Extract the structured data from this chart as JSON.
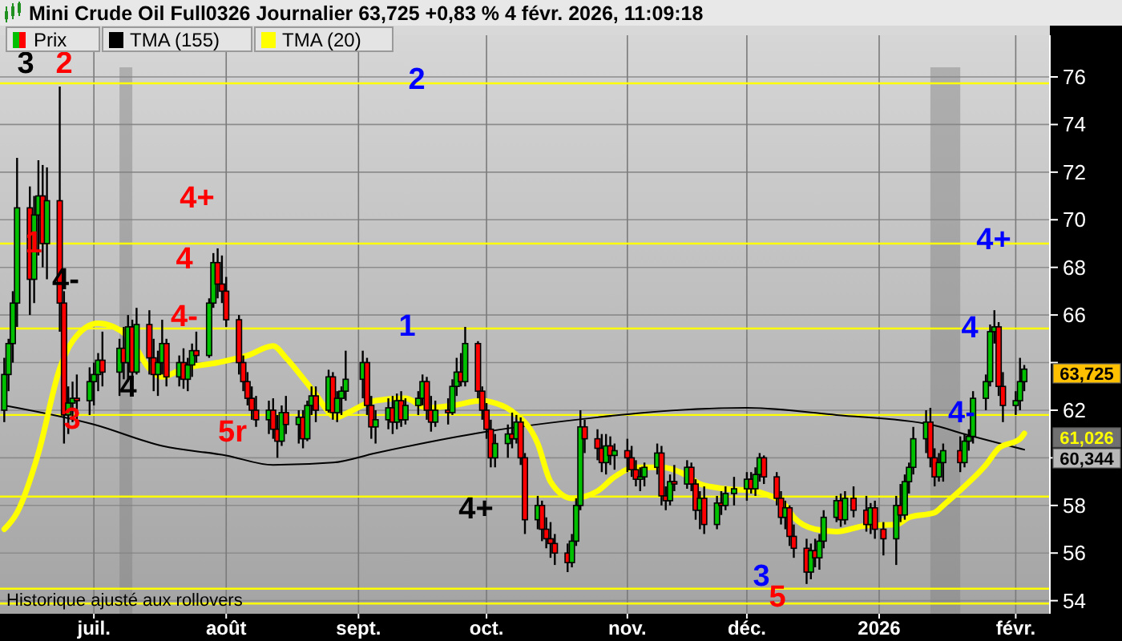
{
  "chart_data": {
    "type": "candlestick",
    "title": "Mini Crude Oil Full0326 Journalier 63,725 +0,83 % 4 févr. 2026, 11:09:18",
    "xlim": [
      "2025-06-09",
      "2026-02-10"
    ],
    "xticks": [
      {
        "value": "2025-07-01",
        "label": "juil."
      },
      {
        "value": "2025-08-01",
        "label": "août"
      },
      {
        "value": "2025-09-01",
        "label": "sept."
      },
      {
        "value": "2025-10-01",
        "label": "oct."
      },
      {
        "value": "2025-11-03",
        "label": "nov."
      },
      {
        "value": "2025-12-01",
        "label": "déc."
      },
      {
        "value": "2026-01-01",
        "label": "2026"
      },
      {
        "value": "2026-02-02",
        "label": "févr."
      }
    ],
    "ylim": [
      53.45,
      77.75
    ],
    "yticks": [
      54,
      56,
      58,
      {
        "value": 60,
        "label": null
      },
      62,
      {
        "value": 64,
        "label": null
      },
      66,
      68,
      70,
      72,
      74,
      76
    ],
    "grid": true,
    "legend": "top left",
    "series": [
      {
        "name": "Prix",
        "x": [
          "2025-06-10",
          "2025-06-11",
          "2025-06-12",
          "2025-06-13",
          "2025-06-16",
          "2025-06-17",
          "2025-06-18",
          "2025-06-19",
          "2025-06-20",
          "2025-06-23",
          "2025-06-24",
          "2025-06-25",
          "2025-06-26",
          "2025-06-27",
          "2025-06-30",
          "2025-07-01",
          "2025-07-02",
          "2025-07-03",
          "2025-07-07",
          "2025-07-08",
          "2025-07-09",
          "2025-07-10",
          "2025-07-11",
          "2025-07-14",
          "2025-07-15",
          "2025-07-16",
          "2025-07-17",
          "2025-07-18",
          "2025-07-21",
          "2025-07-22",
          "2025-07-23",
          "2025-07-24",
          "2025-07-25",
          "2025-07-28",
          "2025-07-29",
          "2025-07-30",
          "2025-07-31",
          "2025-08-01",
          "2025-08-04",
          "2025-08-05",
          "2025-08-06",
          "2025-08-07",
          "2025-08-08",
          "2025-08-11",
          "2025-08-12",
          "2025-08-13",
          "2025-08-14",
          "2025-08-15",
          "2025-08-18",
          "2025-08-19",
          "2025-08-20",
          "2025-08-21",
          "2025-08-22",
          "2025-08-25",
          "2025-08-26",
          "2025-08-27",
          "2025-08-28",
          "2025-08-29",
          "2025-09-02",
          "2025-09-03",
          "2025-09-04",
          "2025-09-05",
          "2025-09-08",
          "2025-09-09",
          "2025-09-10",
          "2025-09-11",
          "2025-09-12",
          "2025-09-15",
          "2025-09-16",
          "2025-09-17",
          "2025-09-18",
          "2025-09-19",
          "2025-09-22",
          "2025-09-23",
          "2025-09-24",
          "2025-09-25",
          "2025-09-26",
          "2025-09-29",
          "2025-09-30",
          "2025-10-01",
          "2025-10-02",
          "2025-10-03",
          "2025-10-06",
          "2025-10-07",
          "2025-10-08",
          "2025-10-09",
          "2025-10-10",
          "2025-10-13",
          "2025-10-14",
          "2025-10-15",
          "2025-10-16",
          "2025-10-17",
          "2025-10-20",
          "2025-10-21",
          "2025-10-22",
          "2025-10-23",
          "2025-10-24",
          "2025-10-27",
          "2025-10-28",
          "2025-10-29",
          "2025-10-30",
          "2025-10-31",
          "2025-11-03",
          "2025-11-04",
          "2025-11-05",
          "2025-11-06",
          "2025-11-07",
          "2025-11-10",
          "2025-11-11",
          "2025-11-12",
          "2025-11-13",
          "2025-11-14",
          "2025-11-17",
          "2025-11-18",
          "2025-11-19",
          "2025-11-20",
          "2025-11-21",
          "2025-11-24",
          "2025-11-25",
          "2025-11-26",
          "2025-11-28",
          "2025-12-01",
          "2025-12-02",
          "2025-12-03",
          "2025-12-04",
          "2025-12-05",
          "2025-12-08",
          "2025-12-09",
          "2025-12-10",
          "2025-12-11",
          "2025-12-12",
          "2025-12-15",
          "2025-12-16",
          "2025-12-17",
          "2025-12-18",
          "2025-12-19",
          "2025-12-22",
          "2025-12-23",
          "2025-12-24",
          "2025-12-26",
          "2025-12-29",
          "2025-12-30",
          "2025-12-31",
          "2026-01-02",
          "2026-01-05",
          "2026-01-06",
          "2026-01-07",
          "2026-01-08",
          "2026-01-09",
          "2026-01-12",
          "2026-01-13",
          "2026-01-14",
          "2026-01-15",
          "2026-01-16",
          "2026-01-20",
          "2026-01-21",
          "2026-01-22",
          "2026-01-23",
          "2026-01-26",
          "2026-01-27",
          "2026-01-28",
          "2026-01-29",
          "2026-01-30",
          "2026-02-02",
          "2026-02-03",
          "2026-02-04"
        ],
        "ohlc": [
          [
            62,
            64.2,
            61.5,
            63.5
          ],
          [
            63.5,
            65,
            62.8,
            64.8
          ],
          [
            64.8,
            67,
            64,
            66.5
          ],
          [
            66.5,
            72.6,
            65.5,
            70.5
          ],
          [
            70.5,
            71.4,
            66,
            67.5
          ],
          [
            67.5,
            71,
            66.5,
            70.2
          ],
          [
            70.2,
            72.5,
            68.5,
            71
          ],
          [
            71,
            72.3,
            68,
            69
          ],
          [
            69,
            72.2,
            67.5,
            70.8
          ],
          [
            70.8,
            75.6,
            65.3,
            66.5
          ],
          [
            66.5,
            67,
            60.6,
            61.8
          ],
          [
            61.8,
            63,
            61,
            62.3
          ],
          [
            62.3,
            63.2,
            61.5,
            62.5
          ],
          [
            62.5,
            63.5,
            61.6,
            62.4
          ],
          [
            62.4,
            63.8,
            61.8,
            63.2
          ],
          [
            63.2,
            64,
            62.2,
            63.5
          ],
          [
            63.5,
            64.4,
            62.8,
            64.1
          ],
          [
            64.1,
            65.3,
            63,
            63.6
          ],
          [
            63.6,
            65,
            62.6,
            64.6
          ],
          [
            64.6,
            65.5,
            63.3,
            64
          ],
          [
            64,
            66,
            63.2,
            65.5
          ],
          [
            65.5,
            65.8,
            63.2,
            63.6
          ],
          [
            63.6,
            66.3,
            63.5,
            65.6
          ],
          [
            65.6,
            66.2,
            63.5,
            64.2
          ],
          [
            64.2,
            65,
            62.8,
            63.5
          ],
          [
            63.5,
            64.5,
            62.6,
            64
          ],
          [
            64,
            65.8,
            63.5,
            64.8
          ],
          [
            64.8,
            65,
            63,
            63.4
          ],
          [
            63.4,
            64.3,
            63,
            64
          ],
          [
            64,
            64.6,
            62.9,
            63.3
          ],
          [
            63.3,
            64.2,
            62.8,
            63.9
          ],
          [
            63.9,
            64.8,
            63.4,
            64.5
          ],
          [
            64.5,
            65.3,
            64,
            64.3
          ],
          [
            64.3,
            66.7,
            64.2,
            66.5
          ],
          [
            66.5,
            68.6,
            66.3,
            68.2
          ],
          [
            68.2,
            68.8,
            66.7,
            67.3
          ],
          [
            67.3,
            68.5,
            66.5,
            67
          ],
          [
            67,
            67.6,
            65.5,
            65.8
          ],
          [
            65.8,
            66,
            63.5,
            64
          ],
          [
            64,
            64.3,
            62.8,
            63.2
          ],
          [
            63.2,
            63.6,
            62.2,
            62.5
          ],
          [
            62.5,
            63,
            61.6,
            62
          ],
          [
            62,
            62.6,
            61.3,
            61.6
          ],
          [
            61.6,
            62.4,
            61,
            62
          ],
          [
            62,
            62.5,
            60.8,
            61.2
          ],
          [
            61.2,
            61.8,
            60,
            60.7
          ],
          [
            60.7,
            62.2,
            60.5,
            61.9
          ],
          [
            61.9,
            62.6,
            61,
            61.4
          ],
          [
            61.4,
            62,
            60.6,
            61.7
          ],
          [
            61.7,
            62,
            60.4,
            60.8
          ],
          [
            60.8,
            62.4,
            60.7,
            62.2
          ],
          [
            62.2,
            63,
            61.8,
            62.6
          ],
          [
            62.6,
            63,
            61.5,
            62
          ],
          [
            62,
            63.7,
            61.9,
            63.4
          ],
          [
            63.4,
            63.6,
            61.6,
            61.9
          ],
          [
            61.9,
            62.8,
            61.5,
            62.5
          ],
          [
            62.5,
            63,
            61.8,
            62.8
          ],
          [
            62.8,
            64.5,
            62.4,
            63.3
          ],
          [
            63.3,
            64.5,
            62.5,
            64
          ],
          [
            64,
            64.2,
            61.8,
            62.2
          ],
          [
            62.2,
            62.6,
            60.8,
            61.3
          ],
          [
            61.3,
            62,
            60.6,
            61.6
          ],
          [
            61.6,
            62.5,
            61.2,
            62.1
          ],
          [
            62.1,
            62.6,
            61,
            61.5
          ],
          [
            61.5,
            62.7,
            61.2,
            62.4
          ],
          [
            62.4,
            62.8,
            61.3,
            61.6
          ],
          [
            61.6,
            62.5,
            61.4,
            62.2
          ],
          [
            62.2,
            62.8,
            61.8,
            62.5
          ],
          [
            62.5,
            63.5,
            62.2,
            63.2
          ],
          [
            63.2,
            63.4,
            61.6,
            62
          ],
          [
            62,
            62.6,
            61.1,
            61.5
          ],
          [
            61.5,
            62.4,
            61.3,
            62
          ],
          [
            62,
            62.5,
            61.4,
            61.9
          ],
          [
            61.9,
            63.3,
            61.8,
            63
          ],
          [
            63,
            64.2,
            62.6,
            63.6
          ],
          [
            63.6,
            64.4,
            63,
            63.2
          ],
          [
            63.2,
            65.5,
            63,
            64.8
          ],
          [
            64.8,
            64.9,
            62.5,
            62.8
          ],
          [
            62.8,
            63,
            61.6,
            62
          ],
          [
            62,
            62.3,
            60.8,
            61.2
          ],
          [
            61.2,
            61.6,
            59.6,
            60
          ],
          [
            60,
            61,
            59.6,
            60.6
          ],
          [
            60.6,
            61.4,
            60,
            61
          ],
          [
            61,
            61.9,
            60.4,
            60.8
          ],
          [
            60.8,
            61.8,
            60.6,
            61.5
          ],
          [
            61.5,
            61.7,
            59.7,
            60
          ],
          [
            60,
            60.2,
            56.8,
            57.4
          ],
          [
            57.4,
            58.4,
            57,
            58
          ],
          [
            58,
            58.2,
            56.5,
            57
          ],
          [
            57,
            57.5,
            56.2,
            56.6
          ],
          [
            56.6,
            57.3,
            55.8,
            56.4
          ],
          [
            56.4,
            56.8,
            55.5,
            56
          ],
          [
            56,
            56.4,
            55.2,
            55.6
          ],
          [
            55.6,
            56.8,
            55.4,
            56.5
          ],
          [
            56.5,
            58.3,
            56.3,
            58
          ],
          [
            58,
            62,
            57.8,
            61.3
          ],
          [
            61.3,
            61.6,
            60.2,
            60.8
          ],
          [
            60.8,
            61.2,
            59.9,
            60.4
          ],
          [
            60.4,
            61,
            59.4,
            59.8
          ],
          [
            59.8,
            61,
            59.3,
            60.5
          ],
          [
            60.5,
            60.9,
            59.7,
            60.1
          ],
          [
            60.1,
            60.6,
            59.5,
            60.3
          ],
          [
            60.3,
            60.8,
            59.4,
            60
          ],
          [
            60,
            60.5,
            59.2,
            59.5
          ],
          [
            59.5,
            59.9,
            58.8,
            59.1
          ],
          [
            59.1,
            59.6,
            58.6,
            59.2
          ],
          [
            59.2,
            59.8,
            58.8,
            59.6
          ],
          [
            59.6,
            60.6,
            59.3,
            60.2
          ],
          [
            60.2,
            60.5,
            58,
            58.4
          ],
          [
            58.4,
            58.8,
            57.8,
            58.2
          ],
          [
            58.2,
            59.3,
            58,
            59
          ],
          [
            59,
            59.7,
            58.6,
            58.9
          ],
          [
            58.9,
            59.9,
            58.7,
            59.6
          ],
          [
            59.6,
            59.8,
            58.6,
            58.9
          ],
          [
            58.9,
            59.1,
            57.4,
            57.8
          ],
          [
            57.8,
            58.6,
            57,
            58.3
          ],
          [
            58.3,
            58.8,
            56.8,
            57.2
          ],
          [
            57.2,
            58.4,
            57,
            58.1
          ],
          [
            58.1,
            58.6,
            57.6,
            58
          ],
          [
            58,
            58.8,
            57.8,
            58.5
          ],
          [
            58.5,
            59.2,
            58,
            58.7
          ],
          [
            58.7,
            59.4,
            58.2,
            59.1
          ],
          [
            59.1,
            59.4,
            58.5,
            58.7
          ],
          [
            58.7,
            59.6,
            58.4,
            59.3
          ],
          [
            59.3,
            60.2,
            59,
            60
          ],
          [
            60,
            60.1,
            58.9,
            59.2
          ],
          [
            59.2,
            59.4,
            58,
            58.3
          ],
          [
            58.3,
            58.6,
            57.2,
            57.5
          ],
          [
            57.5,
            58.2,
            57,
            57.9
          ],
          [
            57.9,
            58,
            56.3,
            56.7
          ],
          [
            56.7,
            57.2,
            55.8,
            56.2
          ],
          [
            56.2,
            56.6,
            54.7,
            55.2
          ],
          [
            55.2,
            56.4,
            54.9,
            56.1
          ],
          [
            56.1,
            56.6,
            55.4,
            55.8
          ],
          [
            55.8,
            56.8,
            55.3,
            56.5
          ],
          [
            56.5,
            57.8,
            56.2,
            57.5
          ],
          [
            57.5,
            58.4,
            57.3,
            58.2
          ],
          [
            58.2,
            58.5,
            57.1,
            57.4
          ],
          [
            57.4,
            58.6,
            57.2,
            58.3
          ],
          [
            58.3,
            58.8,
            57.5,
            57.8
          ],
          [
            57.8,
            58.4,
            56.9,
            57.2
          ],
          [
            57.2,
            58.1,
            56.8,
            57.9
          ],
          [
            57.9,
            58.2,
            56.6,
            57
          ],
          [
            57,
            57.3,
            55.9,
            56.6
          ],
          [
            56.6,
            58.4,
            55.5,
            58
          ],
          [
            58,
            58.9,
            57.3,
            57.6
          ],
          [
            57.6,
            59.3,
            57.4,
            59
          ],
          [
            59,
            59.8,
            58.5,
            59.6
          ],
          [
            59.6,
            61.3,
            59.3,
            60.8
          ],
          [
            60.8,
            62,
            60.2,
            61.5
          ],
          [
            61.5,
            62.1,
            59.6,
            60
          ],
          [
            60,
            60.4,
            58.8,
            59.2
          ],
          [
            59.2,
            60.2,
            59,
            59.8
          ],
          [
            59.8,
            60.6,
            59,
            60.3
          ],
          [
            60.3,
            60.9,
            59.4,
            59.8
          ],
          [
            59.8,
            61,
            59.6,
            60.7
          ],
          [
            60.7,
            61.2,
            60.3,
            60.9
          ],
          [
            60.9,
            62.8,
            60.6,
            62.5
          ],
          [
            62.5,
            63.5,
            62,
            63.2
          ],
          [
            63.2,
            65.6,
            63,
            65.3
          ],
          [
            65.3,
            66.2,
            64.8,
            65.5
          ],
          [
            65.5,
            65.7,
            62.6,
            63
          ],
          [
            63,
            63.6,
            61.5,
            62.2
          ],
          [
            62.2,
            62.8,
            61.8,
            62.4
          ],
          [
            62.4,
            64.2,
            62,
            63.2
          ],
          [
            63.2,
            63.9,
            62.8,
            63.725
          ]
        ]
      },
      {
        "name": "TMA (155)",
        "type": "line",
        "color": "#000000",
        "x": [
          "2025-06-10",
          "2025-07-01",
          "2025-07-17",
          "2025-08-01",
          "2025-08-12",
          "2025-08-26",
          "2025-09-05",
          "2025-10-01",
          "2025-10-27",
          "2025-11-07",
          "2025-12-01",
          "2025-12-22",
          "2026-01-13",
          "2026-01-21",
          "2026-02-04"
        ],
        "values": [
          62.2,
          61.4,
          60.5,
          60.1,
          59.7,
          59.8,
          60.2,
          61.1,
          61.7,
          61.9,
          62.1,
          61.8,
          61.4,
          61.0,
          60.344
        ]
      },
      {
        "name": "TMA (20)",
        "type": "line",
        "color": "#ffff00",
        "x": [
          "2025-06-10",
          "2025-06-13",
          "2025-06-18",
          "2025-06-23",
          "2025-06-26",
          "2025-07-02",
          "2025-07-09",
          "2025-07-14",
          "2025-07-17",
          "2025-07-22",
          "2025-07-30",
          "2025-08-06",
          "2025-08-12",
          "2025-08-15",
          "2025-08-21",
          "2025-08-27",
          "2025-08-29",
          "2025-09-05",
          "2025-09-12",
          "2025-09-17",
          "2025-09-23",
          "2025-09-30",
          "2025-10-02",
          "2025-10-07",
          "2025-10-13",
          "2025-10-16",
          "2025-10-21",
          "2025-10-27",
          "2025-10-31",
          "2025-11-05",
          "2025-11-11",
          "2025-11-17",
          "2025-11-20",
          "2025-11-26",
          "2025-12-03",
          "2025-12-05",
          "2025-12-10",
          "2025-12-12",
          "2025-12-17",
          "2025-12-22",
          "2025-12-29",
          "2026-01-05",
          "2026-01-08",
          "2026-01-14",
          "2026-01-16",
          "2026-01-21",
          "2026-01-26",
          "2026-01-29",
          "2026-02-03",
          "2026-02-04"
        ],
        "values": [
          57.0,
          57.7,
          60.2,
          63.75,
          64.9,
          65.65,
          65.1,
          63.75,
          63.4,
          63.75,
          64.0,
          64.3,
          64.7,
          64.2,
          62.9,
          61.7,
          61.85,
          62.4,
          62.5,
          62.1,
          62.2,
          62.4,
          62.35,
          61.95,
          60.6,
          59.0,
          58.3,
          58.6,
          59.2,
          59.6,
          59.6,
          59.25,
          58.9,
          58.7,
          58.6,
          58.5,
          58.0,
          57.5,
          57.0,
          56.9,
          57.15,
          57.2,
          57.5,
          57.7,
          58.0,
          58.8,
          59.7,
          60.4,
          60.8,
          61.026
        ]
      }
    ],
    "ref_lines": [
      {
        "axis": "y",
        "value": 75.73,
        "color": "#ffff00"
      },
      {
        "axis": "y",
        "value": 69.0,
        "color": "#ffff00"
      },
      {
        "axis": "y",
        "value": 65.43,
        "color": "#ffff00"
      },
      {
        "axis": "y",
        "value": 61.8,
        "color": "#ffff00"
      },
      {
        "axis": "y",
        "value": 58.37,
        "color": "#ffff00"
      },
      {
        "axis": "y",
        "value": 54.5,
        "color": "#ffff00"
      },
      {
        "axis": "y",
        "value": 53.88,
        "color": "#ffff00"
      }
    ],
    "bands": [
      {
        "axis": "x",
        "from": "2025-07-07",
        "to": "2025-07-10",
        "color": "#808080"
      },
      {
        "axis": "x",
        "from": "2026-01-13",
        "to": "2026-01-20",
        "color": "#808080"
      }
    ],
    "annotations": [
      "3",
      "2",
      "1",
      "4-",
      "3",
      "4",
      "4+",
      "4",
      "4-",
      "5r",
      "2",
      "1",
      "4+",
      "3",
      "5",
      "4+",
      "4",
      "4-",
      "63,725",
      "61,026",
      "60,344",
      "Historique ajusté aux rollovers"
    ]
  }
}
